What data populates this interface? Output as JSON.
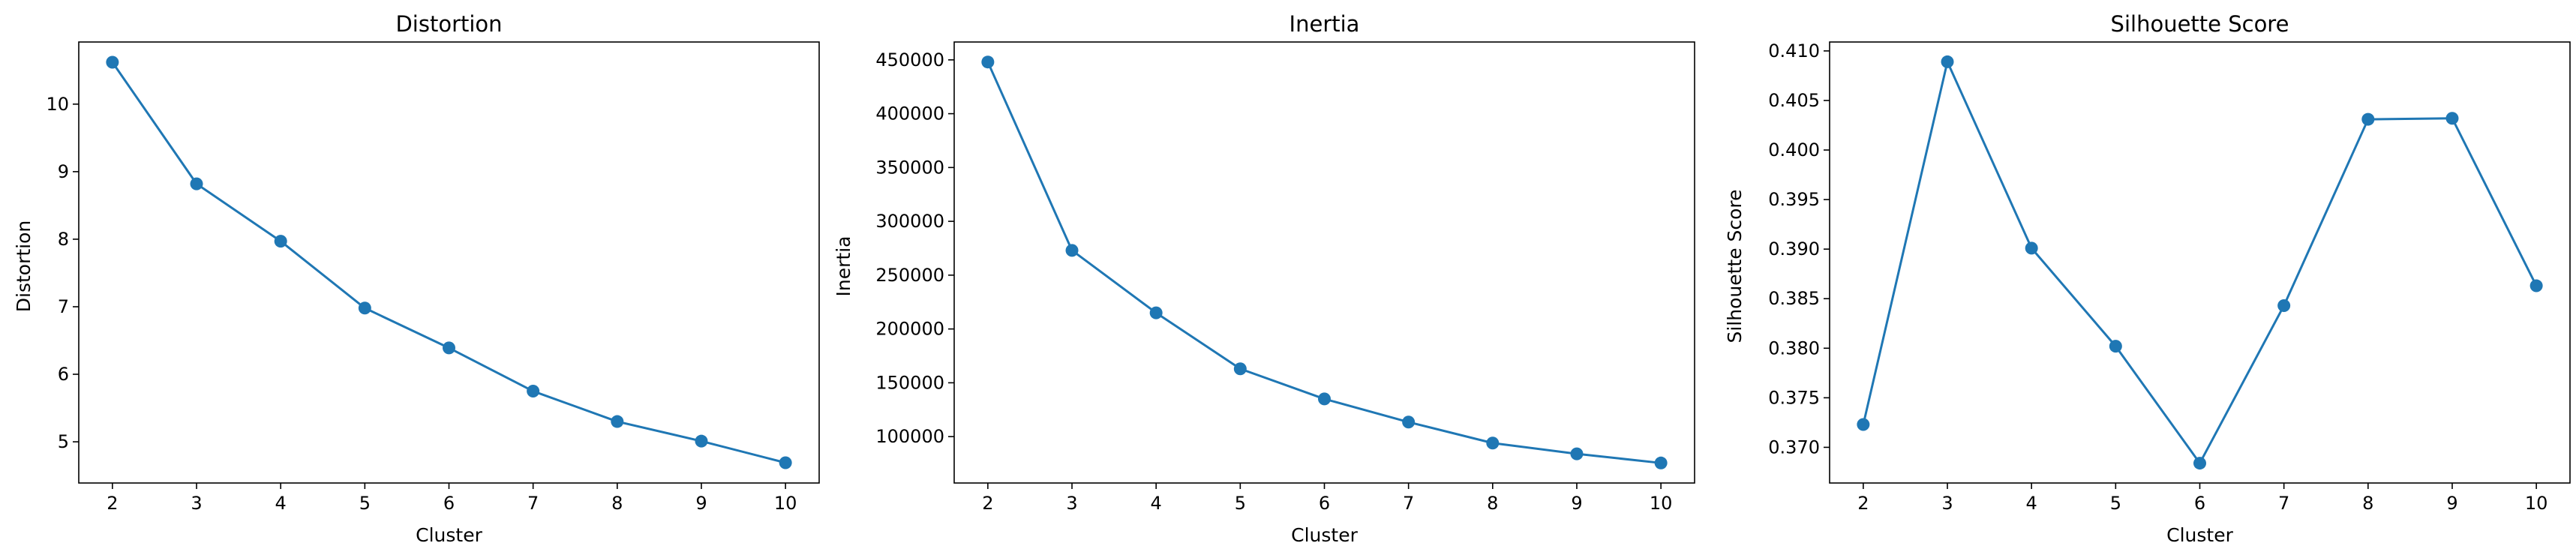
{
  "chart_data": [
    {
      "type": "line",
      "title": "Distortion",
      "xlabel": "Cluster",
      "ylabel": "Distortion",
      "x": [
        2,
        3,
        4,
        5,
        6,
        7,
        8,
        9,
        10
      ],
      "values": [
        10.62,
        8.82,
        7.97,
        6.98,
        6.39,
        5.75,
        5.3,
        5.01,
        4.69
      ],
      "xticks": [
        2,
        3,
        4,
        5,
        6,
        7,
        8,
        9,
        10
      ],
      "xtick_labels": [
        "2",
        "3",
        "4",
        "5",
        "6",
        "7",
        "8",
        "9",
        "10"
      ],
      "yticks": [
        5,
        6,
        7,
        8,
        9,
        10
      ],
      "ytick_labels": [
        "5",
        "6",
        "7",
        "8",
        "9",
        "10"
      ],
      "xlim": [
        1.6,
        10.4
      ],
      "ylim": [
        4.39,
        10.92
      ],
      "grid": false,
      "color": "#1f77b4"
    },
    {
      "type": "line",
      "title": "Inertia",
      "xlabel": "Cluster",
      "ylabel": "Inertia",
      "x": [
        2,
        3,
        4,
        5,
        6,
        7,
        8,
        9,
        10
      ],
      "values": [
        448000,
        273000,
        215000,
        163000,
        135000,
        113500,
        94000,
        84000,
        75500
      ],
      "xticks": [
        2,
        3,
        4,
        5,
        6,
        7,
        8,
        9,
        10
      ],
      "xtick_labels": [
        "2",
        "3",
        "4",
        "5",
        "6",
        "7",
        "8",
        "9",
        "10"
      ],
      "yticks": [
        100000,
        150000,
        200000,
        250000,
        300000,
        350000,
        400000,
        450000
      ],
      "ytick_labels": [
        "100000",
        "150000",
        "200000",
        "250000",
        "300000",
        "350000",
        "400000",
        "450000"
      ],
      "xlim": [
        1.6,
        10.4
      ],
      "ylim": [
        56900,
        466600
      ],
      "grid": false,
      "color": "#1f77b4"
    },
    {
      "type": "line",
      "title": "Silhouette Score",
      "xlabel": "Cluster",
      "ylabel": "Silhouette Score",
      "x": [
        2,
        3,
        4,
        5,
        6,
        7,
        8,
        9,
        10
      ],
      "values": [
        0.3723,
        0.4089,
        0.3901,
        0.3802,
        0.3684,
        0.3843,
        0.4031,
        0.4032,
        0.3863
      ],
      "xticks": [
        2,
        3,
        4,
        5,
        6,
        7,
        8,
        9,
        10
      ],
      "xtick_labels": [
        "2",
        "3",
        "4",
        "5",
        "6",
        "7",
        "8",
        "9",
        "10"
      ],
      "yticks": [
        0.37,
        0.375,
        0.38,
        0.385,
        0.39,
        0.395,
        0.4,
        0.405,
        0.41
      ],
      "ytick_labels": [
        "0.370",
        "0.375",
        "0.380",
        "0.385",
        "0.390",
        "0.395",
        "0.400",
        "0.405",
        "0.410"
      ],
      "xlim": [
        1.6,
        10.4
      ],
      "ylim": [
        0.3664,
        0.4109
      ],
      "grid": false,
      "color": "#1f77b4"
    }
  ]
}
